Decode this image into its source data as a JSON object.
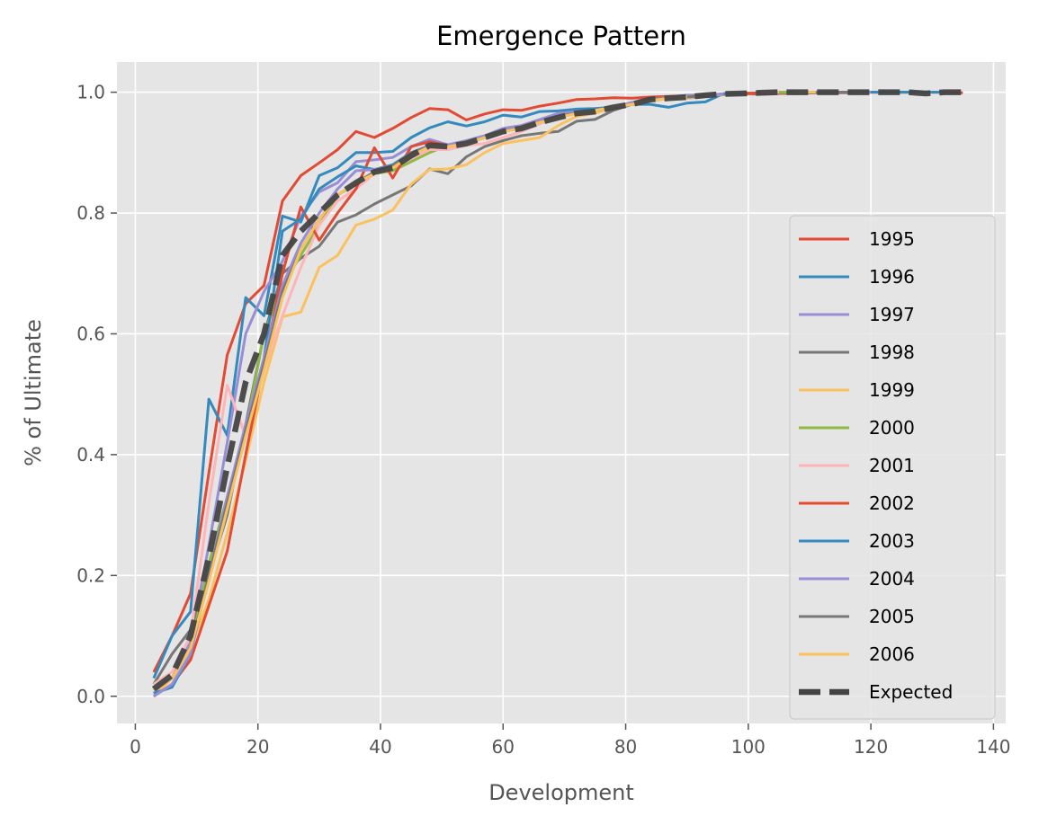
{
  "chart_data": {
    "type": "line",
    "title": "Emergence Pattern",
    "xlabel": "Development",
    "ylabel": "% of Ultimate",
    "xlim": [
      -3,
      142
    ],
    "ylim": [
      -0.045,
      1.05
    ],
    "xticks": [
      "0",
      "20",
      "40",
      "60",
      "80",
      "100",
      "120",
      "140"
    ],
    "xtick_values": [
      0,
      20,
      40,
      60,
      80,
      100,
      120,
      140
    ],
    "yticks": [
      "0.0",
      "0.2",
      "0.4",
      "0.6",
      "0.8",
      "1.0"
    ],
    "ytick_values": [
      0.0,
      0.2,
      0.4,
      0.6,
      0.8,
      1.0
    ],
    "grid": true,
    "legend_position": "right",
    "series": [
      {
        "name": "1995",
        "color": "#E24A33",
        "x": [
          3,
          6,
          9,
          12,
          15,
          18,
          21,
          24,
          27,
          30,
          33,
          36,
          39,
          42,
          45,
          48,
          51,
          54,
          57,
          60,
          63,
          66,
          69,
          72,
          75,
          78,
          81,
          84,
          87,
          90,
          93,
          96,
          99,
          102,
          105,
          108,
          111,
          114,
          117,
          120,
          123,
          126,
          129,
          132,
          135
        ],
        "y": [
          0.04,
          0.1,
          0.17,
          0.37,
          0.565,
          0.65,
          0.68,
          0.82,
          0.862,
          0.883,
          0.905,
          0.935,
          0.925,
          0.94,
          0.958,
          0.973,
          0.971,
          0.954,
          0.964,
          0.971,
          0.97,
          0.977,
          0.982,
          0.988,
          0.989,
          0.991,
          0.99,
          0.992,
          0.993,
          0.994,
          0.995,
          0.996,
          0.997,
          0.997,
          0.998,
          0.998,
          0.999,
          0.999,
          0.999,
          1.0,
          1.0,
          1.0,
          1.0,
          1.0,
          0.999
        ]
      },
      {
        "name": "1996",
        "color": "#348ABD",
        "x": [
          3,
          6,
          9,
          12,
          15,
          18,
          21,
          24,
          27,
          30,
          33,
          36,
          39,
          42,
          45,
          48,
          51,
          54,
          57,
          60,
          63,
          66,
          69,
          72,
          75,
          78,
          81,
          84,
          87,
          90,
          93,
          96,
          99,
          102,
          105,
          108,
          111,
          114,
          117,
          120,
          123,
          126,
          129,
          132
        ],
        "y": [
          0.03,
          0.1,
          0.14,
          0.492,
          0.432,
          0.66,
          0.63,
          0.795,
          0.785,
          0.862,
          0.875,
          0.9,
          0.9,
          0.902,
          0.925,
          0.941,
          0.951,
          0.944,
          0.951,
          0.962,
          0.959,
          0.968,
          0.969,
          0.972,
          0.973,
          0.975,
          0.98,
          0.98,
          0.975,
          0.982,
          0.984,
          0.998,
          0.998,
          0.999,
          0.999,
          0.999,
          1.0,
          1.0,
          1.0,
          1.0,
          1.0,
          1.0,
          1.0,
          1.0
        ]
      },
      {
        "name": "1997",
        "color": "#988ED5",
        "x": [
          3,
          6,
          9,
          12,
          15,
          18,
          21,
          24,
          27,
          30,
          33,
          36,
          39,
          42,
          45,
          48,
          51,
          54,
          57,
          60,
          63,
          66,
          69,
          72,
          75,
          78,
          81,
          84,
          87,
          90,
          93,
          96,
          99,
          102,
          105,
          108,
          111,
          114,
          117,
          120
        ],
        "y": [
          0.005,
          0.03,
          0.09,
          0.25,
          0.42,
          0.6,
          0.67,
          0.72,
          0.795,
          0.835,
          0.85,
          0.885,
          0.888,
          0.892,
          0.91,
          0.922,
          0.913,
          0.92,
          0.928,
          0.94,
          0.945,
          0.955,
          0.965,
          0.968,
          0.97,
          0.975,
          0.983,
          0.988,
          0.992,
          0.995,
          0.996,
          0.997,
          0.998,
          0.999,
          1.0,
          1.0,
          1.0,
          1.0,
          1.0,
          1.0
        ]
      },
      {
        "name": "1998",
        "color": "#777777",
        "x": [
          3,
          6,
          9,
          12,
          15,
          18,
          21,
          24,
          27,
          30,
          33,
          36,
          39,
          42,
          45,
          48,
          51,
          54,
          57,
          60,
          63,
          66,
          69,
          72,
          75,
          78,
          81,
          84,
          87,
          90,
          93,
          96,
          99,
          102,
          105,
          108,
          111,
          114,
          117
        ],
        "y": [
          0.02,
          0.07,
          0.11,
          0.2,
          0.3,
          0.45,
          0.6,
          0.7,
          0.725,
          0.745,
          0.785,
          0.797,
          0.815,
          0.83,
          0.845,
          0.873,
          0.865,
          0.893,
          0.91,
          0.92,
          0.928,
          0.932,
          0.935,
          0.952,
          0.955,
          0.97,
          0.98,
          0.985,
          0.99,
          0.99,
          0.993,
          0.996,
          0.997,
          0.998,
          0.999,
          0.999,
          0.999,
          1.0,
          1.0
        ]
      },
      {
        "name": "1999",
        "color": "#FBC15E",
        "x": [
          3,
          6,
          9,
          12,
          15,
          18,
          21,
          24,
          27,
          30,
          33,
          36,
          39,
          42,
          45,
          48,
          51,
          54,
          57,
          60,
          63,
          66,
          69,
          72,
          75,
          78,
          81,
          84,
          87,
          90,
          93,
          96,
          99,
          102,
          105,
          108,
          111
        ],
        "y": [
          0.0,
          0.03,
          0.08,
          0.16,
          0.27,
          0.39,
          0.52,
          0.628,
          0.636,
          0.71,
          0.73,
          0.78,
          0.79,
          0.805,
          0.848,
          0.872,
          0.873,
          0.88,
          0.9,
          0.915,
          0.92,
          0.925,
          0.945,
          0.96,
          0.965,
          0.975,
          0.98,
          0.985,
          0.99,
          0.99,
          0.995,
          0.996,
          0.998,
          0.999,
          1.0,
          1.0,
          1.0
        ]
      },
      {
        "name": "2000",
        "color": "#8EBA42",
        "x": [
          3,
          6,
          9,
          12,
          15,
          18,
          21,
          24,
          27,
          30,
          33,
          36,
          39,
          42,
          45,
          48,
          51,
          54,
          57,
          60,
          63,
          66,
          69,
          72,
          75,
          78,
          81,
          84,
          87,
          90,
          93,
          96,
          99,
          102,
          105,
          108
        ],
        "y": [
          0.01,
          0.03,
          0.08,
          0.22,
          0.33,
          0.44,
          0.6,
          0.68,
          0.73,
          0.78,
          0.83,
          0.848,
          0.865,
          0.87,
          0.885,
          0.9,
          0.912,
          0.915,
          0.925,
          0.935,
          0.943,
          0.952,
          0.96,
          0.965,
          0.97,
          0.975,
          0.982,
          0.988,
          0.99,
          0.992,
          0.995,
          0.997,
          0.998,
          0.999,
          1.0,
          1.0
        ]
      },
      {
        "name": "2001",
        "color": "#FFB5B8",
        "x": [
          3,
          6,
          9,
          12,
          15,
          18,
          21,
          24,
          27,
          30,
          33,
          36,
          39,
          42,
          45,
          48,
          51,
          54,
          57,
          60,
          63,
          66,
          69,
          72,
          75,
          78,
          81,
          84,
          87,
          90,
          93,
          96,
          99,
          102,
          105
        ],
        "y": [
          0.02,
          0.04,
          0.1,
          0.32,
          0.515,
          0.43,
          0.54,
          0.63,
          0.71,
          0.78,
          0.82,
          0.84,
          0.865,
          0.875,
          0.89,
          0.905,
          0.905,
          0.912,
          0.915,
          0.925,
          0.935,
          0.948,
          0.958,
          0.965,
          0.97,
          0.975,
          0.982,
          0.988,
          0.99,
          0.992,
          0.995,
          0.997,
          0.998,
          0.999,
          1.0
        ]
      },
      {
        "name": "2002",
        "color": "#E24A33",
        "x": [
          3,
          6,
          9,
          12,
          15,
          18,
          21,
          24,
          27,
          30,
          33,
          36,
          39,
          42,
          45,
          48,
          51,
          54,
          57,
          60,
          63,
          66,
          69,
          72,
          75,
          78,
          81,
          84,
          87,
          90,
          93,
          96,
          99,
          102
        ],
        "y": [
          0.0,
          0.02,
          0.06,
          0.15,
          0.24,
          0.4,
          0.55,
          0.7,
          0.81,
          0.755,
          0.8,
          0.84,
          0.908,
          0.858,
          0.91,
          0.918,
          0.912,
          0.915,
          0.925,
          0.935,
          0.942,
          0.952,
          0.96,
          0.965,
          0.97,
          0.975,
          0.982,
          0.988,
          0.99,
          0.992,
          0.995,
          0.997,
          0.998,
          0.999
        ]
      },
      {
        "name": "2003",
        "color": "#348ABD",
        "x": [
          3,
          6,
          9,
          12,
          15,
          18,
          21,
          24,
          27,
          30,
          33,
          36,
          39,
          42,
          45,
          48,
          51,
          54,
          57,
          60,
          63,
          66,
          69,
          72,
          75,
          78,
          81,
          84,
          87,
          90,
          93,
          96,
          99
        ],
        "y": [
          0.005,
          0.015,
          0.07,
          0.2,
          0.32,
          0.44,
          0.56,
          0.77,
          0.79,
          0.84,
          0.86,
          0.878,
          0.872,
          0.88,
          0.9,
          0.91,
          0.912,
          0.915,
          0.925,
          0.935,
          0.942,
          0.952,
          0.96,
          0.965,
          0.97,
          0.975,
          0.982,
          0.988,
          0.99,
          0.992,
          0.995,
          0.997,
          0.998
        ]
      },
      {
        "name": "2004",
        "color": "#988ED5",
        "x": [
          3,
          6,
          9,
          12,
          15,
          18,
          21,
          24,
          27,
          30,
          33,
          36,
          39,
          42,
          45,
          48,
          51,
          54,
          57,
          60,
          63,
          66,
          69,
          72,
          75,
          78,
          81,
          84,
          87,
          90,
          93,
          96
        ],
        "y": [
          0.0,
          0.02,
          0.07,
          0.2,
          0.33,
          0.45,
          0.56,
          0.68,
          0.75,
          0.8,
          0.84,
          0.87,
          0.872,
          0.878,
          0.9,
          0.912,
          0.912,
          0.918,
          0.925,
          0.935,
          0.942,
          0.952,
          0.96,
          0.965,
          0.97,
          0.975,
          0.982,
          0.988,
          0.99,
          0.992,
          0.995,
          0.997
        ]
      },
      {
        "name": "2005",
        "color": "#777777",
        "x": [
          3,
          6,
          9,
          12,
          15,
          18,
          21,
          24,
          27,
          30,
          33,
          36,
          39,
          42,
          45,
          48,
          51,
          54,
          57,
          60,
          63,
          66,
          69,
          72,
          75,
          78,
          81,
          84,
          87,
          90,
          93
        ],
        "y": [
          0.01,
          0.03,
          0.08,
          0.2,
          0.32,
          0.44,
          0.55,
          0.67,
          0.74,
          0.79,
          0.83,
          0.85,
          0.868,
          0.878,
          0.9,
          0.91,
          0.91,
          0.915,
          0.925,
          0.935,
          0.94,
          0.95,
          0.96,
          0.965,
          0.97,
          0.975,
          0.98,
          0.988,
          0.99,
          0.992,
          0.995
        ]
      },
      {
        "name": "2006",
        "color": "#FBC15E",
        "x": [
          3,
          6,
          9,
          12,
          15,
          18,
          21,
          24,
          27,
          30,
          33,
          36,
          39,
          42,
          45,
          48,
          51,
          54,
          57,
          60,
          63,
          66,
          69,
          72,
          75,
          78,
          81,
          84,
          87,
          90
        ],
        "y": [
          0.01,
          0.03,
          0.08,
          0.19,
          0.31,
          0.43,
          0.54,
          0.66,
          0.74,
          0.79,
          0.83,
          0.85,
          0.865,
          0.875,
          0.895,
          0.91,
          0.91,
          0.915,
          0.925,
          0.935,
          0.94,
          0.95,
          0.958,
          0.965,
          0.97,
          0.975,
          0.98,
          0.986,
          0.99,
          0.992
        ]
      },
      {
        "name": "Expected",
        "color": "#444444",
        "dashed": true,
        "x": [
          3,
          6,
          9,
          12,
          15,
          18,
          21,
          24,
          27,
          30,
          33,
          36,
          39,
          42,
          45,
          48,
          51,
          54,
          57,
          60,
          63,
          66,
          69,
          72,
          75,
          78,
          81,
          84,
          87,
          90,
          93,
          96,
          99,
          102,
          105,
          108,
          111,
          114,
          117,
          120,
          123,
          126,
          129,
          132,
          135
        ],
        "y": [
          0.012,
          0.035,
          0.1,
          0.23,
          0.38,
          0.52,
          0.6,
          0.73,
          0.77,
          0.8,
          0.83,
          0.85,
          0.868,
          0.875,
          0.895,
          0.912,
          0.91,
          0.915,
          0.925,
          0.935,
          0.94,
          0.95,
          0.958,
          0.965,
          0.968,
          0.975,
          0.98,
          0.988,
          0.99,
          0.992,
          0.995,
          0.997,
          0.998,
          0.999,
          1.0,
          1.0,
          1.0,
          1.0,
          1.0,
          1.0,
          1.0,
          1.0,
          0.998,
          1.0,
          1.0
        ]
      }
    ]
  }
}
